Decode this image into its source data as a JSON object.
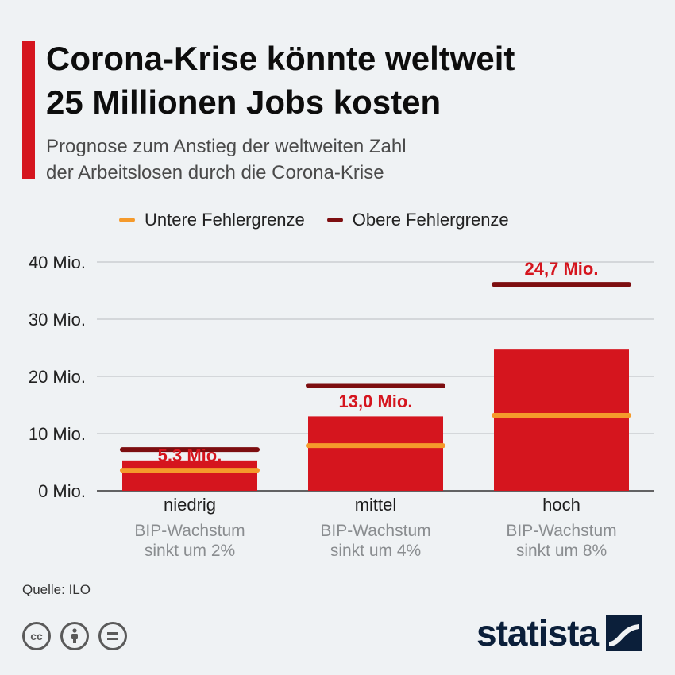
{
  "title_lines": [
    "Corona-Krise könnte weltweit",
    "25 Millionen Jobs kosten"
  ],
  "subtitle_lines": [
    "Prognose zum Anstieg der weltweiten Zahl",
    "der Arbeitslosen durch die Corona-Krise"
  ],
  "legend": {
    "lower": {
      "label": "Untere Fehlergrenze",
      "color": "#f59a2b"
    },
    "upper": {
      "label": "Obere Fehlergrenze",
      "color": "#7d0e10"
    }
  },
  "source": "Quelle: ILO",
  "brand": "statista",
  "chart_data": {
    "type": "bar",
    "categories": [
      "niedrig",
      "mittel",
      "hoch"
    ],
    "category_subtitles": [
      [
        "BIP-Wachstum",
        "sinkt um 2%"
      ],
      [
        "BIP-Wachstum",
        "sinkt um 4%"
      ],
      [
        "BIP-Wachstum",
        "sinkt um 8%"
      ]
    ],
    "values": [
      5.3,
      13.0,
      24.7
    ],
    "value_labels": [
      "5,3 Mio.",
      "13,0 Mio.",
      "24,7 Mio."
    ],
    "lower_bound": [
      3.6,
      7.9,
      13.2
    ],
    "upper_bound": [
      7.2,
      18.4,
      36.1
    ],
    "y_ticks": [
      0,
      10,
      20,
      30,
      40
    ],
    "y_tick_labels": [
      "0 Mio.",
      "10 Mio.",
      "20 Mio.",
      "30 Mio.",
      "40 Mio."
    ],
    "ylim": [
      0,
      40
    ],
    "bar_color": "#d5151e",
    "label_color": "#d5151e",
    "grid": true
  }
}
